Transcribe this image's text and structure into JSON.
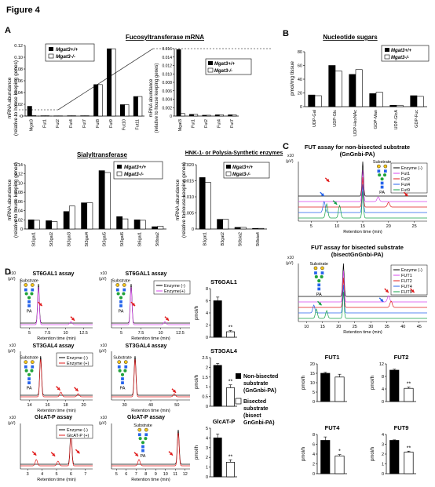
{
  "figure_title": "Figure 4",
  "panel_letters": [
    "A",
    "B",
    "C",
    "D"
  ],
  "legend_common": {
    "wt": "Mgat3+/+",
    "ko": "Mgat3-/-"
  },
  "ylabel_mrna_1": "mRNA abundance",
  "ylabel_mrna_2": "(relative to house keeping genes)",
  "chart_data": [
    {
      "id": "fuco_main",
      "type": "bar",
      "title": "Fucosyltransferase mRNA",
      "categories": [
        "Mgat3",
        "Fut1",
        "Fut2",
        "Fut4",
        "Fut7",
        "Fut8",
        "Fut9",
        "Fut10",
        "Fut11"
      ],
      "series": [
        {
          "name": "Mgat3+/+",
          "values": [
            0.018,
            0.0006,
            0.0004,
            0.0006,
            0.0006,
            0.058,
            0.124,
            0.021,
            0.036
          ]
        },
        {
          "name": "Mgat3-/-",
          "values": [
            0.0008,
            0.0006,
            0.0004,
            0.0006,
            0.0006,
            0.058,
            0.124,
            0.021,
            0.036
          ]
        }
      ],
      "ylim": [
        0,
        0.13
      ],
      "yticks": [
        "0",
        "0.02",
        "0.04",
        "0.06",
        "0.08",
        "0.10",
        "0.12"
      ]
    },
    {
      "id": "fuco_inset",
      "type": "bar",
      "categories": [
        "Mgat3",
        "Fut1",
        "Fut2",
        "Fut4",
        "Fut7"
      ],
      "series": [
        {
          "name": "Mgat3+/+",
          "values": [
            0.0158,
            0.0004,
            0.0002,
            0.0003,
            0.0003
          ]
        },
        {
          "name": "Mgat3-/-",
          "values": [
            0.0006,
            0.0004,
            0.0002,
            0.0003,
            0.0003
          ]
        }
      ],
      "ylim": [
        0,
        0.016
      ],
      "yticks": [
        "0",
        "0.002",
        "0.004",
        "0.006",
        "0.008",
        "0.010",
        "0.012",
        "0.014",
        "0.016"
      ]
    },
    {
      "id": "nucleotide",
      "type": "bar",
      "title": "Nucleotide sugars",
      "ylabel": "pmol/mg tissue",
      "categories": [
        "UDP-Gal",
        "UDP-Glc",
        "UDP-HexNAc",
        "GDP-Man",
        "UDP-GlcA",
        "GDP-Fuc"
      ],
      "series": [
        {
          "name": "Mgat3+/+",
          "values": [
            17,
            60,
            47,
            19,
            2,
            16
          ]
        },
        {
          "name": "Mgat3-/-",
          "values": [
            16,
            52,
            54,
            21,
            2,
            15
          ]
        }
      ],
      "ylim": [
        0,
        80
      ],
      "yticks": [
        "0",
        "20",
        "40",
        "60",
        "80"
      ]
    },
    {
      "id": "sialyl",
      "type": "bar",
      "title": "Sialyltransferase",
      "categories": [
        "St3gal1",
        "St3gal2",
        "St3gal3",
        "St3gal4",
        "St3gal5",
        "St3gal6",
        "St6gal1",
        "St8sia2"
      ],
      "series": [
        {
          "name": "Mgat3+/+",
          "values": [
            0.02,
            0.018,
            0.038,
            0.057,
            0.127,
            0.027,
            0.02,
            0.005
          ]
        },
        {
          "name": "Mgat3-/-",
          "values": [
            0.019,
            0.016,
            0.05,
            0.057,
            0.123,
            0.022,
            0.019,
            0.006
          ]
        }
      ],
      "ylim": [
        0,
        0.14
      ],
      "yticks": [
        "0",
        "0.02",
        "0.04",
        "0.06",
        "0.08",
        "0.10",
        "0.12",
        "0.14"
      ]
    },
    {
      "id": "hnk",
      "type": "bar",
      "title": "HNK-1- or Polysia-Synthetic enzymes",
      "categories": [
        "B3gat1",
        "B3gat2",
        "St8sia2",
        "St8sia4"
      ],
      "series": [
        {
          "name": "Mgat3+/+",
          "values": [
            0.016,
            0.003,
            0.0005,
            0.0002
          ]
        },
        {
          "name": "Mgat3-/-",
          "values": [
            0.0145,
            0.003,
            0.0005,
            0.0002
          ]
        }
      ],
      "ylim": [
        0,
        0.02
      ],
      "yticks": [
        "0",
        "0.005",
        "0.010",
        "0.015",
        "0.020"
      ]
    },
    {
      "id": "st6gal1_bar",
      "type": "bar",
      "title": "ST6GAL1",
      "ylabel": "pmol/h",
      "categories": [
        "Non-bisected",
        "Bisected"
      ],
      "values": [
        6.0,
        0.9
      ],
      "errors": [
        0.6,
        0.2
      ],
      "ylim": [
        0,
        8
      ],
      "yticks": [
        "0",
        "2",
        "4",
        "6",
        "8"
      ],
      "sig": "**"
    },
    {
      "id": "st3gal4_bar",
      "type": "bar",
      "title": "ST3GAL4",
      "ylabel": "pmol/h",
      "categories": [
        "Non-bisected",
        "Bisected"
      ],
      "values": [
        2.1,
        0.95
      ],
      "errors": [
        0.1,
        0.15
      ],
      "ylim": [
        0,
        2.5
      ],
      "yticks": [
        "0",
        "0.5",
        "1",
        "1.5",
        "2",
        "2.5"
      ],
      "sig": "**"
    },
    {
      "id": "glcat_bar",
      "type": "bar",
      "title": "GlcAT-P",
      "ylabel": "pmol/h",
      "categories": [
        "Non-bisected",
        "Bisected"
      ],
      "values": [
        4.0,
        1.5
      ],
      "errors": [
        0.4,
        0.25
      ],
      "ylim": [
        0,
        5
      ],
      "yticks": [
        "0",
        "1",
        "2",
        "3",
        "4",
        "5"
      ],
      "sig": "**"
    },
    {
      "id": "fut1_bar",
      "type": "bar",
      "title": "FUT1",
      "ylabel": "pmol/h",
      "categories": [
        "Non-bisected",
        "Bisected"
      ],
      "values": [
        15,
        13
      ],
      "errors": [
        0.5,
        1.5
      ],
      "ylim": [
        0,
        20
      ],
      "yticks": [
        "0",
        "5",
        "10",
        "15",
        "20"
      ],
      "sig": ""
    },
    {
      "id": "fut2_bar",
      "type": "bar",
      "title": "FUT2",
      "ylabel": "pmol/h",
      "categories": [
        "Non-bisected",
        "Bisected"
      ],
      "values": [
        10,
        4.2
      ],
      "errors": [
        0.3,
        0.4
      ],
      "ylim": [
        0,
        12
      ],
      "yticks": [
        "0",
        "4",
        "8",
        "12"
      ],
      "sig": "**"
    },
    {
      "id": "fut4_bar",
      "type": "bar",
      "title": "FUT4",
      "ylabel": "pmol/h",
      "categories": [
        "Non-bisected",
        "Bisected"
      ],
      "values": [
        6.8,
        3.6
      ],
      "errors": [
        0.7,
        0.3
      ],
      "ylim": [
        0,
        8
      ],
      "yticks": [
        "0",
        "2",
        "4",
        "6",
        "8"
      ],
      "sig": "*"
    },
    {
      "id": "fut9_bar",
      "type": "bar",
      "title": "FUT9",
      "ylabel": "pmol/h",
      "categories": [
        "Non-bisected",
        "Bisected"
      ],
      "values": [
        3.4,
        2.2
      ],
      "errors": [
        0.05,
        0.1
      ],
      "ylim": [
        0,
        4
      ],
      "yticks": [
        "0",
        "1",
        "2",
        "3",
        "4"
      ],
      "sig": "**"
    }
  ],
  "chromatograms": {
    "c_non_title": "FUT assay for non-bisected substrate",
    "c_non_sub": "(GnGnbi-PA)",
    "c_bis_title": "FUT assay for bisected substrate",
    "c_bis_sub": "(bisectGnGnbi-PA)",
    "c_non_legend": [
      "Enzyme (-)",
      "Fut1",
      "Fut2",
      "Fut4",
      "Fut9"
    ],
    "c_bis_legend": [
      "Enzyme (-)",
      "FUT1",
      "FUT2",
      "FUT4",
      "FUT9"
    ],
    "c_non_ticks": [
      "5",
      "10",
      "15",
      "20",
      "25"
    ],
    "c_bis_ticks": [
      "10",
      "15",
      "20",
      "25",
      "30",
      "35",
      "40",
      "45"
    ],
    "xlabel": "Retention time (min)",
    "yunit_a": "x10",
    "yunit_b": "(μV)",
    "substrate": "Substrate",
    "pa": "PA",
    "d1_title": "ST6GAL1 assay",
    "d2_title": "ST6GAL1 assay",
    "d3_title": "ST3GAL4 assay",
    "d4_title": "ST3GAL4 assay",
    "d5_title": "GlcAT-P assay",
    "d6_title": "GlcAT-P assay",
    "d_legend_st6": [
      "Enzyme (-)",
      "Enzyme(+)"
    ],
    "d_legend_st3": [
      "Enzyme (-)",
      "Enzyme (+)"
    ],
    "d_legend_glc": [
      "Enzyme (-)",
      "GlcAT-P (+)"
    ],
    "d1_ticks": [
      "5",
      "7.5",
      "10",
      "12.5"
    ],
    "d2_ticks": [
      "5",
      "7.5",
      "10",
      "12.5"
    ],
    "d3_ticks": [
      "14",
      "16",
      "18",
      "20"
    ],
    "d4_ticks": [
      "30",
      "40",
      "50"
    ],
    "d5_ticks": [
      "3",
      "4",
      "5",
      "6",
      "7"
    ],
    "d6_ticks": [
      "5",
      "6",
      "7",
      "8",
      "9",
      "10",
      "11",
      "12"
    ]
  },
  "legend_d": {
    "non": [
      "Non-bisected",
      "substrate",
      "(GnGnbi-PA)"
    ],
    "bis": [
      "Bisected",
      "substrate",
      "(bisect",
      "GnGnbi-PA)"
    ]
  },
  "colors": {
    "enzyme_neg": "#000000",
    "fut1": "#d946ef",
    "fut2": "#e11d1d",
    "fut4": "#2563eb",
    "fut9": "#16a34a",
    "enzyme_pos": "#e11d1d",
    "arrow_red": "#e11d1d",
    "arrow_blue": "#2563eb",
    "arrow_green": "#16a34a",
    "gal": "#f5c518",
    "glcnac": "#2563eb",
    "man": "#22a33a"
  }
}
